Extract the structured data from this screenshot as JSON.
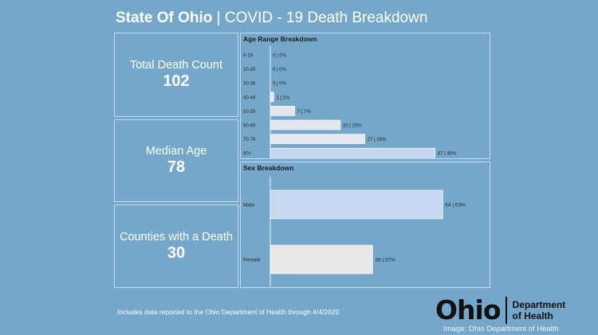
{
  "header": {
    "title_bold": "State Of Ohio",
    "title_rest": " | COVID - 19 Death Breakdown"
  },
  "stats": [
    {
      "label": "Total Death Count",
      "value": "102"
    },
    {
      "label": "Median Age",
      "value": "78"
    },
    {
      "label": "Counties with a Death",
      "value": "30"
    }
  ],
  "footnote": "Includes data reported to the Ohio Department of Health through 4/4/2020",
  "logo": {
    "word": "Ohio",
    "dept_line1": "Department",
    "dept_line2": "of Health"
  },
  "credit": "Image: Ohio Department of Health",
  "chart_data": [
    {
      "type": "bar",
      "orientation": "horizontal",
      "title": "Age Range Breakdown",
      "categories": [
        "0-19",
        "20-29",
        "30-39",
        "40-49",
        "50-59",
        "60-69",
        "70-79",
        "80+"
      ],
      "values": [
        0,
        0,
        0,
        1,
        7,
        20,
        27,
        47
      ],
      "labels": [
        "0 | 0%",
        "0 | 0%",
        "0 | 0%",
        "1 | 1%",
        "7 | 7%",
        "20 | 20%",
        "27 | 26%",
        "47 | 46%"
      ],
      "xlim": [
        0,
        58
      ],
      "colors": [
        "#e4e7ee",
        "#e4e7ee",
        "#e4e7ee",
        "#e4e7ee",
        "#e4e7ee",
        "#e4e7ee",
        "#e4e7ee",
        "#c6d9f1"
      ]
    },
    {
      "type": "bar",
      "orientation": "horizontal",
      "title": "Sex Breakdown",
      "categories": [
        "Male",
        "Female"
      ],
      "values": [
        64,
        38
      ],
      "labels": [
        "64 | 63%",
        "38 | 37%"
      ],
      "xlim": [
        0,
        79
      ],
      "colors": [
        "#c6d9f1",
        "#e8e8e8"
      ]
    }
  ]
}
